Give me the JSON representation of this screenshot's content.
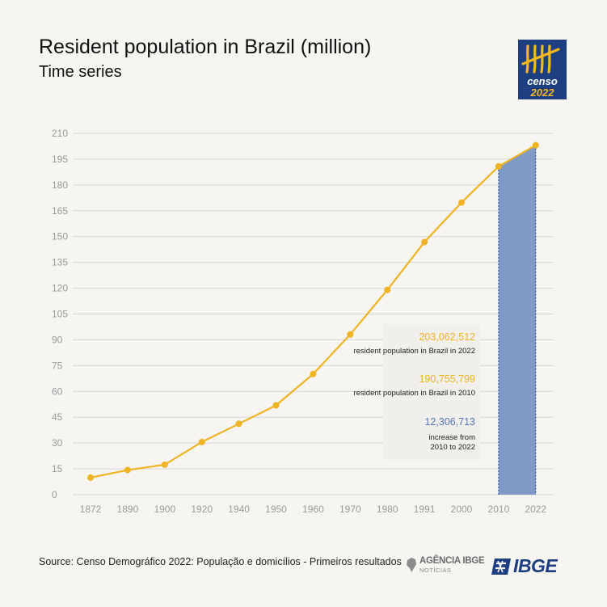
{
  "header": {
    "title": "Resident population in Brazil (million)",
    "subtitle": "Time series"
  },
  "logo": {
    "text": "censo",
    "year": "2022",
    "color": "#1d3f82",
    "accent": "#f4b81c"
  },
  "chart_data": {
    "type": "line",
    "categories": [
      "1872",
      "1890",
      "1900",
      "1920",
      "1940",
      "1950",
      "1960",
      "1970",
      "1980",
      "1991",
      "2000",
      "2010",
      "2022"
    ],
    "series": [
      {
        "values": [
          9.9,
          14.3,
          17.4,
          30.6,
          41.2,
          51.9,
          70.1,
          93.1,
          119.0,
          146.8,
          169.8,
          190.8,
          203.1
        ]
      }
    ],
    "yticks": [
      0,
      15,
      30,
      45,
      60,
      75,
      90,
      105,
      120,
      135,
      150,
      165,
      180,
      195,
      210
    ],
    "ylim": [
      0,
      210
    ],
    "grid": true,
    "highlight": {
      "from": "2010",
      "to": "2022"
    },
    "line_color": "#f0b323",
    "highlight_color": "#7f9ac6"
  },
  "annotations": [
    {
      "value": "203,062,512",
      "label": "resident population in Brazil in 2022",
      "color": "#f0b323"
    },
    {
      "value": "190,755,799",
      "label": "resident population in Brazil in 2010",
      "color": "#f0b323"
    },
    {
      "value": "12,306,713",
      "label": "increase from\n2010 to 2022",
      "color": "#5577b8"
    }
  ],
  "footer": {
    "source": "Source: Censo Demográfico 2022: População e domicílios - Primeiros resultados",
    "agencia_name": "AGÊNCIA IBGE",
    "agencia_sub": "NOTÍCIAS",
    "ibge_name": "IBGE"
  }
}
